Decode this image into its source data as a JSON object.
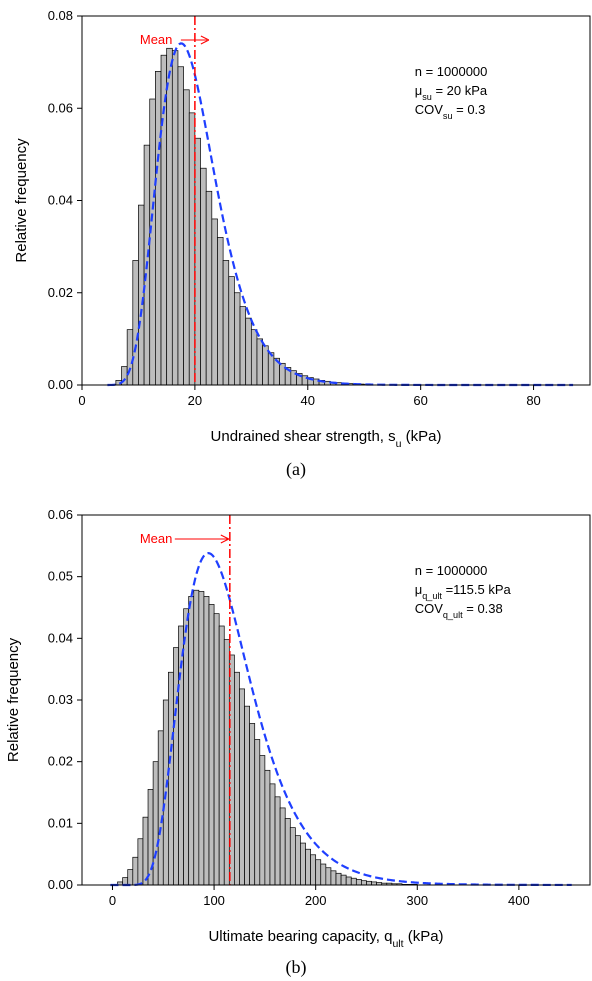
{
  "chart_data": [
    {
      "type": "bar",
      "caption": "(a)",
      "xlabel_main": "Undrained shear strength, s",
      "xlabel_sub": "u",
      "xlabel_tail": " (kPa)",
      "ylabel": "Relative frequency",
      "xlim": [
        0,
        90
      ],
      "ylim": [
        0,
        0.08
      ],
      "xticks": [
        0,
        20,
        40,
        60,
        80
      ],
      "yticks": [
        0,
        0.02,
        0.04,
        0.06,
        0.08
      ],
      "xtick_labels": [
        "0",
        "20",
        "40",
        "60",
        "80"
      ],
      "ytick_labels": [
        "0.00",
        "0.02",
        "0.04",
        "0.06",
        "0.08"
      ],
      "mean": 20,
      "mean_label": "Mean",
      "curve": "lognormal",
      "curve_mean": 20,
      "curve_cov": 0.3,
      "bin_width": 1,
      "bins_start": 5,
      "values": [
        0.0001,
        0.001,
        0.004,
        0.012,
        0.027,
        0.039,
        0.052,
        0.062,
        0.068,
        0.0715,
        0.073,
        0.0725,
        0.069,
        0.064,
        0.059,
        0.0535,
        0.047,
        0.042,
        0.036,
        0.032,
        0.027,
        0.0235,
        0.02,
        0.017,
        0.0145,
        0.012,
        0.01,
        0.0085,
        0.007,
        0.0058,
        0.0047,
        0.0038,
        0.0031,
        0.0025,
        0.002,
        0.0016,
        0.0013,
        0.001,
        0.0008,
        0.0006,
        0.0005,
        0.0004,
        0.0003,
        0.0002,
        0.0002,
        0.0001
      ],
      "annotation": [
        {
          "pre": "n = 1000000",
          "sub": "",
          "post": ""
        },
        {
          "pre": "μ",
          "sub": "su",
          "post": " = 20 kPa"
        },
        {
          "pre": "COV",
          "sub": "su",
          "post": " = 0.3"
        }
      ]
    },
    {
      "type": "bar",
      "caption": "(b)",
      "xlabel_main": "Ultimate bearing capacity, q",
      "xlabel_sub": "ult",
      "xlabel_tail": " (kPa)",
      "ylabel": "Relative frequency",
      "xlim": [
        -30,
        470
      ],
      "ylim": [
        0,
        0.06
      ],
      "xticks": [
        0,
        100,
        200,
        300,
        400
      ],
      "yticks": [
        0,
        0.01,
        0.02,
        0.03,
        0.04,
        0.05,
        0.06
      ],
      "xtick_labels": [
        "0",
        "100",
        "200",
        "300",
        "400"
      ],
      "ytick_labels": [
        "0.00",
        "0.01",
        "0.02",
        "0.03",
        "0.04",
        "0.05",
        "0.06"
      ],
      "mean": 115.5,
      "mean_label": "Mean",
      "curve": "normal_fit",
      "curve_mean": 115.5,
      "curve_cov": 0.38,
      "bin_width": 5,
      "bins_start": 0,
      "values": [
        0.0001,
        0.0005,
        0.0012,
        0.0025,
        0.0045,
        0.0075,
        0.011,
        0.0155,
        0.02,
        0.025,
        0.03,
        0.0345,
        0.0385,
        0.042,
        0.0448,
        0.0468,
        0.0478,
        0.0476,
        0.0468,
        0.0455,
        0.044,
        0.042,
        0.0398,
        0.0373,
        0.0345,
        0.0318,
        0.029,
        0.0262,
        0.0236,
        0.021,
        0.0186,
        0.0164,
        0.0143,
        0.0125,
        0.0108,
        0.0093,
        0.008,
        0.0068,
        0.0058,
        0.0049,
        0.0041,
        0.0034,
        0.0028,
        0.0023,
        0.0019,
        0.0016,
        0.0013,
        0.0011,
        0.0009,
        0.0007,
        0.0006,
        0.0005,
        0.0004,
        0.0003,
        0.0003,
        0.0002,
        0.0002,
        0.0001,
        0.0001,
        0.0001
      ],
      "annotation": [
        {
          "pre": "n = 1000000",
          "sub": "",
          "post": ""
        },
        {
          "pre": "μ",
          "sub": "q_ult",
          "post": " =115.5 kPa"
        },
        {
          "pre": "COV",
          "sub": "q_ult",
          "post": " = 0.38"
        }
      ]
    }
  ],
  "colors": {
    "bar_fill": "#bdbdbd",
    "bar_stroke": "#000000",
    "curve": "#1f3fff",
    "mean": "#ff0000"
  }
}
